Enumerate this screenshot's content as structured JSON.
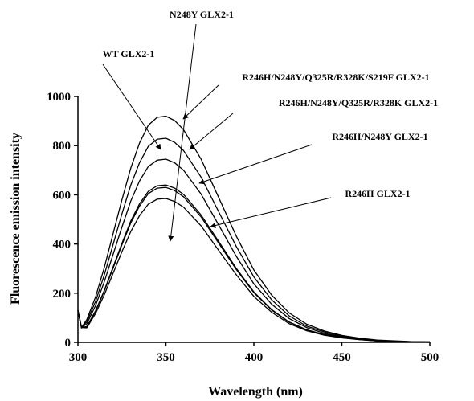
{
  "chart_data": {
    "type": "line",
    "x_label": "Wavelength (nm)",
    "y_label": "Fluorescence emission intensity",
    "x": [
      300,
      302,
      305,
      310,
      315,
      320,
      325,
      330,
      335,
      340,
      345,
      350,
      355,
      360,
      370,
      380,
      390,
      400,
      410,
      420,
      430,
      440,
      450,
      460,
      470,
      480,
      490,
      500
    ],
    "series": [
      {
        "name": "R246H/N248Y/Q325R/R328K/S219F GLX2-1",
        "color": "#000000",
        "values": [
          130,
          60,
          92,
          184,
          304,
          442,
          580,
          708,
          810,
          883,
          915,
          920,
          902,
          865,
          745,
          589,
          432,
          294,
          193,
          120,
          74,
          46,
          28,
          17,
          9,
          6,
          3,
          2
        ]
      },
      {
        "name": "R246H/N248Y/Q325R/R328K GLX2-1",
        "color": "#000000",
        "values": [
          130,
          60,
          83,
          166,
          274,
          398,
          523,
          639,
          730,
          797,
          826,
          830,
          813,
          780,
          672,
          531,
          390,
          266,
          174,
          108,
          66,
          42,
          25,
          15,
          8,
          5,
          2,
          2
        ]
      },
      {
        "name": "R246H/N248Y GLX2-1",
        "color": "#000000",
        "values": [
          130,
          60,
          75,
          149,
          246,
          358,
          469,
          574,
          656,
          715,
          741,
          745,
          730,
          700,
          603,
          477,
          350,
          238,
          156,
          97,
          60,
          37,
          22,
          13,
          7,
          4,
          2,
          1
        ]
      },
      {
        "name": "N248Y GLX2-1",
        "color": "#000000",
        "values": [
          130,
          60,
          64,
          128,
          211,
          307,
          403,
          493,
          563,
          614,
          637,
          640,
          627,
          602,
          518,
          410,
          301,
          205,
          134,
          83,
          51,
          32,
          19,
          12,
          6,
          4,
          2,
          1
        ]
      },
      {
        "name": "WT GLX2-1",
        "color": "#000000",
        "values": [
          130,
          60,
          63,
          126,
          208,
          302,
          397,
          485,
          554,
          605,
          627,
          630,
          617,
          592,
          510,
          403,
          296,
          202,
          132,
          82,
          50,
          32,
          19,
          11,
          6,
          4,
          2,
          1
        ]
      },
      {
        "name": "R246H GLX2-1",
        "color": "#000000",
        "values": [
          130,
          60,
          59,
          117,
          193,
          281,
          369,
          450,
          515,
          562,
          582,
          585,
          573,
          550,
          474,
          374,
          275,
          187,
          123,
          76,
          47,
          29,
          18,
          11,
          6,
          4,
          2,
          1
        ]
      }
    ],
    "xlim": [
      300,
      500
    ],
    "xticks": [
      300,
      350,
      400,
      450,
      500
    ],
    "ylim": [
      0,
      1000
    ],
    "yticks": [
      0,
      200,
      400,
      600,
      800,
      1000
    ]
  }
}
